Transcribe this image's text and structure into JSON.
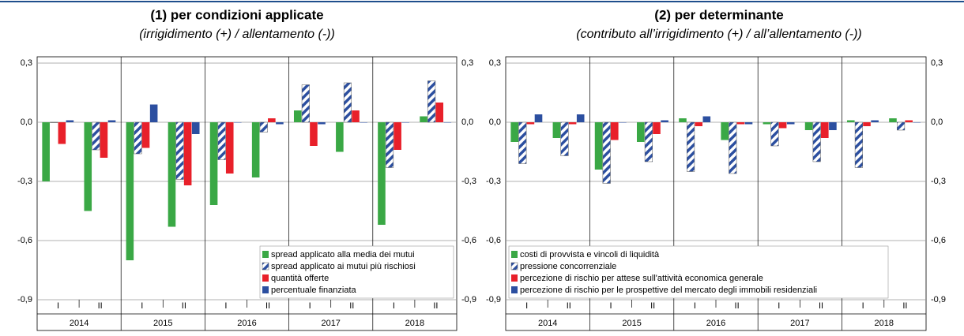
{
  "chart_data": [
    {
      "type": "bar",
      "title": "(1) per condizioni applicate",
      "subtitle": "(irrigidimento (+) / allentamento (-))",
      "categories": [
        "I",
        "II",
        "I",
        "II",
        "I",
        "II",
        "I",
        "II",
        "I",
        "II"
      ],
      "x_groups": [
        "2014",
        "2015",
        "2016",
        "2017",
        "2018"
      ],
      "ylim": [
        -0.9,
        0.3
      ],
      "yticks": [
        {
          "value": 0.3,
          "label": "0,3"
        },
        {
          "value": 0.0,
          "label": "0,0"
        },
        {
          "value": -0.3,
          "label": "-0,3"
        },
        {
          "value": -0.6,
          "label": "-0,6"
        },
        {
          "value": -0.9,
          "label": "-0,9"
        }
      ],
      "grid": true,
      "legend": "lower right",
      "series": [
        {
          "name": "spread applicato alla media dei mutui",
          "color": "#3aa845",
          "values": [
            -0.3,
            -0.45,
            -0.7,
            -0.53,
            -0.42,
            -0.28,
            0.06,
            -0.15,
            -0.52,
            0.03
          ]
        },
        {
          "name": "spread applicato ai mutui più rischiosi",
          "color": "#2c4fa0",
          "pattern": "hatch",
          "values": [
            0,
            -0.14,
            -0.16,
            -0.29,
            -0.19,
            -0.05,
            0.19,
            0.2,
            -0.23,
            0.21
          ]
        },
        {
          "name": "quantità offerte",
          "color": "#e8202a",
          "values": [
            -0.11,
            -0.18,
            -0.13,
            -0.32,
            -0.26,
            0.02,
            -0.12,
            0.06,
            -0.14,
            0.1
          ]
        },
        {
          "name": "percentuale finanziata",
          "color": "#2c4fa0",
          "values": [
            0.01,
            0.01,
            0.09,
            -0.06,
            0,
            -0.01,
            -0.01,
            0,
            0,
            0
          ]
        }
      ]
    },
    {
      "type": "bar",
      "title": "(2) per determinante",
      "subtitle": "(contributo all’irrigidimento (+) / all’allentamento (-))",
      "categories": [
        "I",
        "II",
        "I",
        "II",
        "I",
        "II",
        "I",
        "II",
        "I",
        "II"
      ],
      "x_groups": [
        "2014",
        "2015",
        "2016",
        "2017",
        "2018"
      ],
      "ylim": [
        -0.9,
        0.3
      ],
      "yticks": [
        {
          "value": 0.3,
          "label": "0,3"
        },
        {
          "value": 0.0,
          "label": "0,0"
        },
        {
          "value": -0.3,
          "label": "-0,3"
        },
        {
          "value": -0.6,
          "label": "-0,6"
        },
        {
          "value": -0.9,
          "label": "-0,9"
        }
      ],
      "grid": true,
      "legend": "lower left",
      "series": [
        {
          "name": "costi di provvista e vincoli di liquidità",
          "color": "#3aa845",
          "values": [
            -0.1,
            -0.08,
            -0.24,
            -0.1,
            0.02,
            -0.09,
            -0.01,
            -0.04,
            0.01,
            0.02
          ]
        },
        {
          "name": "pressione concorrenziale",
          "color": "#2c4fa0",
          "pattern": "hatch",
          "values": [
            -0.21,
            -0.17,
            -0.31,
            -0.2,
            -0.25,
            -0.26,
            -0.12,
            -0.2,
            -0.23,
            -0.04
          ]
        },
        {
          "name": "percezione di rischio per attese sull'attività economica generale",
          "color": "#e8202a",
          "values": [
            -0.01,
            -0.01,
            -0.09,
            -0.06,
            -0.02,
            -0.01,
            -0.03,
            -0.08,
            -0.02,
            0.01
          ]
        },
        {
          "name": "percezione di rischio per le prospettive del mercato degli immobili residenziali",
          "color": "#2c4fa0",
          "values": [
            0.04,
            0.04,
            0,
            0.01,
            0.03,
            -0.01,
            -0.01,
            -0.04,
            0.01,
            0
          ]
        }
      ]
    }
  ]
}
